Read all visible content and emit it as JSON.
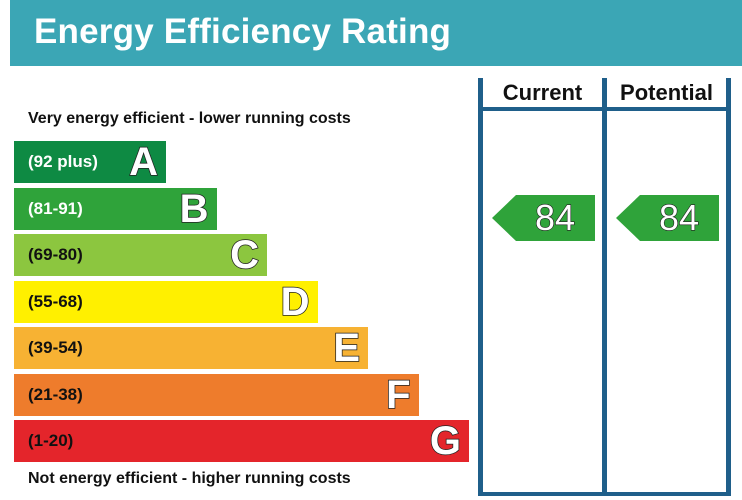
{
  "header": {
    "title": "Energy Efficiency Rating"
  },
  "captions": {
    "top": "Very energy efficient - lower running costs",
    "bottom": "Not energy efficient - higher running costs"
  },
  "columns": {
    "current_label": "Current",
    "potential_label": "Potential"
  },
  "colors": {
    "header": "#3ba6b5",
    "lines": "#1f5f8a"
  },
  "chart_data": {
    "type": "bar",
    "categories": [
      "A",
      "B",
      "C",
      "D",
      "E",
      "F",
      "G"
    ],
    "bands": [
      {
        "letter": "A",
        "range": "(92 plus)",
        "color": "#0e8a43",
        "text_color": "#ffffff"
      },
      {
        "letter": "B",
        "range": "(81-91)",
        "color": "#2fa33a",
        "text_color": "#ffffff"
      },
      {
        "letter": "C",
        "range": "(69-80)",
        "color": "#8cc63f",
        "text_color": "#111111"
      },
      {
        "letter": "D",
        "range": "(55-68)",
        "color": "#fff000",
        "text_color": "#111111"
      },
      {
        "letter": "E",
        "range": "(39-54)",
        "color": "#f7b233",
        "text_color": "#111111"
      },
      {
        "letter": "F",
        "range": "(21-38)",
        "color": "#ee7c2c",
        "text_color": "#111111"
      },
      {
        "letter": "G",
        "range": "(1-20)",
        "color": "#e4252b",
        "text_color": "#111111"
      }
    ],
    "current": {
      "value": "84",
      "band": "B",
      "color": "#2fa33a"
    },
    "potential": {
      "value": "84",
      "band": "B",
      "color": "#2fa33a"
    }
  }
}
